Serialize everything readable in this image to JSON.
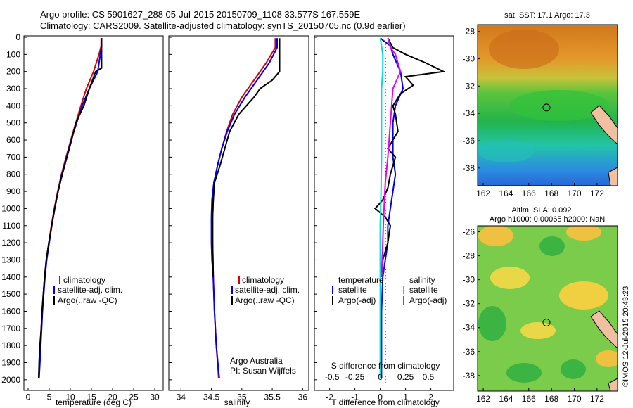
{
  "title": {
    "line1": "Argo profile: CS 5901627_288 05-Jul-2015 20150709_1108 33.577S 167.559E",
    "line2": "Climatology: CARS2009. Satellite-adjusted climatology: synTS_20150705.nc (0.9d earlier)"
  },
  "side_text": "©IMOS 12-Jul-2015 20:43:23",
  "colors": {
    "climatology": "#dd0000",
    "satellite": "#0000ee",
    "argo": "#000000",
    "sal_satellite": "#00dddd",
    "sal_argo": "#ee00ee"
  },
  "chart_data": [
    {
      "type": "line",
      "id": "temperature",
      "xlabel": "temperature (deg C)",
      "ylabel": "",
      "xlim": [
        -1,
        32
      ],
      "ylim": [
        2050,
        0
      ],
      "x_ticks": [
        0,
        5,
        10,
        15,
        20,
        25,
        30
      ],
      "y_ticks": [
        0,
        100,
        200,
        300,
        400,
        500,
        600,
        700,
        800,
        900,
        1000,
        1100,
        1200,
        1300,
        1400,
        1500,
        1600,
        1700,
        1800,
        1900,
        2000
      ],
      "legend": [
        "climatology",
        "satellite-adj. clim.",
        "Argo(..raw -QC)"
      ],
      "series": [
        {
          "name": "climatology",
          "color_key": "climatology",
          "points": [
            [
              17.3,
              5
            ],
            [
              17.3,
              50
            ],
            [
              16.8,
              100
            ],
            [
              15.5,
              200
            ],
            [
              13.8,
              300
            ],
            [
              12.5,
              400
            ],
            [
              11.3,
              500
            ],
            [
              10.1,
              600
            ],
            [
              9,
              700
            ],
            [
              7.9,
              800
            ],
            [
              7,
              900
            ],
            [
              6.2,
              1000
            ],
            [
              5.5,
              1100
            ],
            [
              4.9,
              1200
            ],
            [
              4.3,
              1300
            ],
            [
              3.9,
              1400
            ],
            [
              3.6,
              1500
            ],
            [
              3.3,
              1600
            ],
            [
              3.1,
              1700
            ],
            [
              2.9,
              1800
            ],
            [
              2.7,
              1900
            ],
            [
              2.5,
              1990
            ]
          ]
        },
        {
          "name": "satellite-adj. clim.",
          "color_key": "satellite",
          "points": [
            [
              17.4,
              5
            ],
            [
              17.4,
              50
            ],
            [
              17.1,
              100
            ],
            [
              16.5,
              200
            ],
            [
              14.5,
              300
            ],
            [
              12.8,
              400
            ],
            [
              11.5,
              500
            ],
            [
              10.2,
              600
            ],
            [
              9.1,
              700
            ],
            [
              8,
              800
            ],
            [
              7.1,
              900
            ],
            [
              6.3,
              1000
            ],
            [
              5.6,
              1100
            ],
            [
              5,
              1200
            ],
            [
              4.4,
              1300
            ],
            [
              4,
              1400
            ],
            [
              3.7,
              1500
            ],
            [
              3.4,
              1600
            ],
            [
              3.2,
              1700
            ],
            [
              3,
              1800
            ],
            [
              2.8,
              1900
            ],
            [
              2.6,
              1990
            ]
          ]
        },
        {
          "name": "Argo(..raw -QC)",
          "color_key": "argo",
          "points": [
            [
              17.4,
              5
            ],
            [
              17.4,
              60
            ],
            [
              17.4,
              180
            ],
            [
              16,
              200
            ],
            [
              14.5,
              300
            ],
            [
              13.2,
              400
            ],
            [
              11.3,
              500
            ],
            [
              10.3,
              600
            ],
            [
              9.2,
              700
            ],
            [
              8.1,
              800
            ],
            [
              7.1,
              900
            ],
            [
              6.3,
              1000
            ],
            [
              5.6,
              1100
            ],
            [
              4.9,
              1200
            ],
            [
              4.3,
              1300
            ],
            [
              3.9,
              1400
            ],
            [
              3.6,
              1500
            ],
            [
              3.3,
              1600
            ],
            [
              3.1,
              1700
            ],
            [
              2.8,
              1800
            ],
            [
              2.6,
              1900
            ],
            [
              2.5,
              1990
            ]
          ]
        }
      ]
    },
    {
      "type": "line",
      "id": "salinity",
      "xlabel": "salinity",
      "xlim": [
        33.8,
        36.1
      ],
      "ylim": [
        2050,
        0
      ],
      "x_ticks": [
        34,
        34.5,
        35,
        35.5,
        36
      ],
      "legend": [
        "climatology",
        "satellite-adj. clim.",
        "Argo(..raw -QC)"
      ],
      "annotation": [
        "Argo Australia",
        "PI: Susan Wijffels"
      ],
      "series": [
        {
          "name": "climatology",
          "color_key": "climatology",
          "points": [
            [
              35.55,
              5
            ],
            [
              35.55,
              60
            ],
            [
              35.4,
              150
            ],
            [
              35.2,
              250
            ],
            [
              35,
              350
            ],
            [
              34.85,
              450
            ],
            [
              34.75,
              550
            ],
            [
              34.67,
              650
            ],
            [
              34.6,
              750
            ],
            [
              34.55,
              850
            ],
            [
              34.53,
              950
            ],
            [
              34.52,
              1050
            ],
            [
              34.52,
              1200
            ],
            [
              34.53,
              1400
            ],
            [
              34.55,
              1600
            ],
            [
              34.58,
              1800
            ],
            [
              34.62,
              1990
            ]
          ]
        },
        {
          "name": "satellite-adj. clim.",
          "color_key": "satellite",
          "points": [
            [
              35.58,
              5
            ],
            [
              35.58,
              60
            ],
            [
              35.45,
              150
            ],
            [
              35.25,
              250
            ],
            [
              35.05,
              350
            ],
            [
              34.88,
              450
            ],
            [
              34.76,
              550
            ],
            [
              34.67,
              650
            ],
            [
              34.6,
              750
            ],
            [
              34.54,
              850
            ],
            [
              34.51,
              950
            ],
            [
              34.5,
              1050
            ],
            [
              34.5,
              1200
            ],
            [
              34.51,
              1300
            ],
            [
              34.53,
              1400
            ],
            [
              34.55,
              1600
            ],
            [
              34.58,
              1800
            ],
            [
              34.63,
              1990
            ]
          ]
        },
        {
          "name": "Argo(..raw -QC)",
          "color_key": "argo",
          "points": [
            [
              35.62,
              5
            ],
            [
              35.62,
              60
            ],
            [
              35.62,
              200
            ],
            [
              35.5,
              250
            ],
            [
              35.3,
              300
            ],
            [
              35.2,
              350
            ],
            [
              34.95,
              450
            ],
            [
              34.8,
              550
            ],
            [
              34.72,
              650
            ],
            [
              34.64,
              750
            ],
            [
              34.55,
              850
            ],
            [
              34.53,
              950
            ],
            [
              34.52,
              1050
            ],
            [
              34.52,
              1200
            ],
            [
              34.53,
              1400
            ]
          ]
        }
      ]
    },
    {
      "type": "line",
      "id": "differences",
      "xlabel": "T difference from climatology",
      "xlabel2": "S difference from climatology",
      "xlim": [
        -2.6,
        2.9
      ],
      "ylim": [
        2050,
        0
      ],
      "x_ticks": [
        -2,
        -1,
        0,
        1,
        2
      ],
      "x_ticks_s": [
        "-0.5",
        "-0.25",
        "0",
        "0.25",
        "0.5"
      ],
      "legend_headers": [
        "temperature",
        "salinity"
      ],
      "legend_temperature": [
        "satellite",
        "Argo(-adj)"
      ],
      "legend_salinity": [
        "satellite",
        "Argo(-adj)"
      ],
      "series": [
        {
          "name": "T satellite",
          "color_key": "satellite",
          "points": [
            [
              0,
              5
            ],
            [
              0.4,
              50
            ],
            [
              0.5,
              100
            ],
            [
              0.8,
              200
            ],
            [
              0.9,
              300
            ],
            [
              0.6,
              400
            ],
            [
              0.5,
              500
            ],
            [
              0.5,
              600
            ],
            [
              0.5,
              700
            ],
            [
              0.6,
              800
            ],
            [
              0.5,
              900
            ],
            [
              0.4,
              1000
            ],
            [
              0.3,
              1100
            ],
            [
              0.3,
              1200
            ],
            [
              0.2,
              1300
            ],
            [
              0.1,
              1400
            ],
            [
              0.05,
              1600
            ],
            [
              0.05,
              1800
            ],
            [
              0.05,
              1990
            ]
          ]
        },
        {
          "name": "T Argo(-adj)",
          "color_key": "argo",
          "points": [
            [
              0.3,
              5
            ],
            [
              0.5,
              60
            ],
            [
              1,
              100
            ],
            [
              1.8,
              150
            ],
            [
              2.5,
              200
            ],
            [
              1,
              230
            ],
            [
              1.3,
              280
            ],
            [
              0.8,
              330
            ],
            [
              0.5,
              400
            ],
            [
              0.6,
              450
            ],
            [
              0.7,
              550
            ],
            [
              0.3,
              650
            ],
            [
              0.6,
              700
            ],
            [
              0.4,
              800
            ],
            [
              0.3,
              880
            ],
            [
              0.1,
              950
            ],
            [
              -0.2,
              1000
            ],
            [
              0.2,
              1050
            ],
            [
              0.4,
              1100
            ],
            [
              0.3,
              1200
            ],
            [
              0.1,
              1300
            ],
            [
              0.05,
              1400
            ]
          ]
        },
        {
          "name": "S satellite",
          "color_key": "sal_satellite",
          "points": [
            [
              0,
              5
            ],
            [
              0.05,
              50
            ],
            [
              0.1,
              100
            ],
            [
              0.1,
              200
            ],
            [
              0.05,
              300
            ],
            [
              0.05,
              500
            ],
            [
              0.05,
              700
            ],
            [
              0.03,
              900
            ],
            [
              0,
              1100
            ],
            [
              0,
              1300
            ],
            [
              0,
              1500
            ],
            [
              0,
              1700
            ],
            [
              0,
              1990
            ]
          ]
        },
        {
          "name": "S Argo(-adj)",
          "color_key": "sal_argo",
          "points": [
            [
              0.3,
              5
            ],
            [
              0.4,
              60
            ],
            [
              0.6,
              100
            ],
            [
              0.8,
              200
            ],
            [
              0.5,
              300
            ],
            [
              0.45,
              400
            ],
            [
              0.4,
              500
            ],
            [
              0.3,
              700
            ],
            [
              0.2,
              850
            ],
            [
              0.15,
              1000
            ],
            [
              0.12,
              1100
            ],
            [
              0.1,
              1200
            ],
            [
              0.05,
              1400
            ]
          ]
        }
      ]
    },
    {
      "type": "heatmap",
      "id": "sst-map",
      "title": "sat. SST: 17.1  Argo: 17.3",
      "xlim": [
        161.5,
        173.8
      ],
      "ylim": [
        -39.3,
        -27.5
      ],
      "x_ticks": [
        162,
        164,
        166,
        168,
        170,
        172
      ],
      "y_ticks": [
        -28,
        -30,
        -32,
        -34,
        -36,
        -38
      ],
      "marker": [
        167.559,
        -33.577
      ]
    },
    {
      "type": "heatmap",
      "id": "sla-map",
      "title": "Altim. SLA: 0.092",
      "subtitle": "Argo h1000: 0.00065  h2000: NaN",
      "xlim": [
        161.5,
        173.8
      ],
      "ylim": [
        -39.3,
        -25.5
      ],
      "x_ticks": [
        162,
        164,
        166,
        168,
        170,
        172
      ],
      "y_ticks": [
        -26,
        -28,
        -30,
        -32,
        -34,
        -36,
        -38
      ],
      "marker": [
        167.559,
        -33.577
      ]
    }
  ]
}
